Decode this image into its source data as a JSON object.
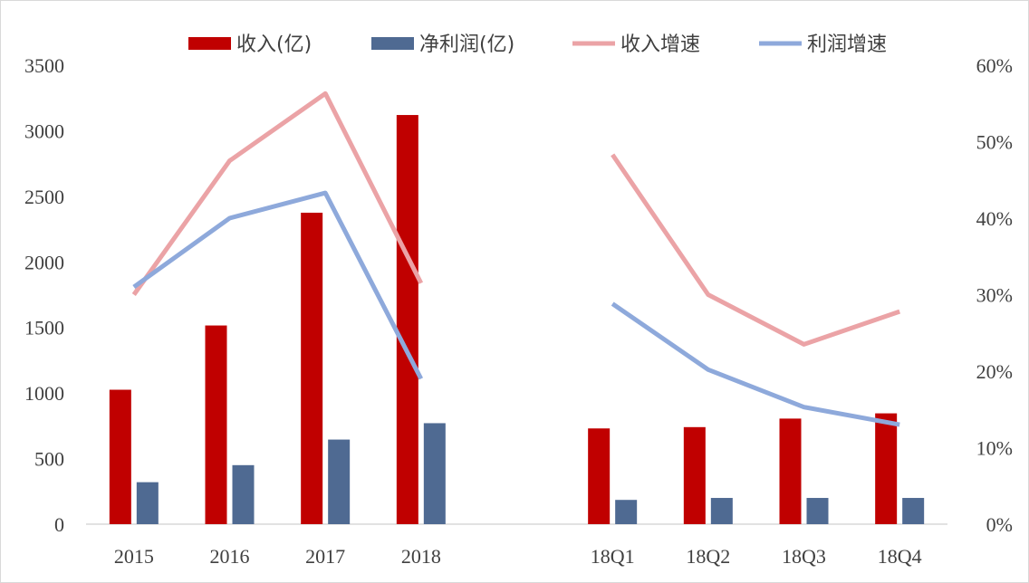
{
  "chart_data": {
    "type": "bar",
    "categories": [
      "2015",
      "2016",
      "2017",
      "2018",
      "",
      "18Q1",
      "18Q2",
      "18Q3",
      "18Q4"
    ],
    "series": [
      {
        "name": "收入(亿)",
        "kind": "bar",
        "axis": "left",
        "color": "#C00000",
        "values": [
          1025,
          1515,
          2375,
          3120,
          null,
          730,
          740,
          805,
          845
        ]
      },
      {
        "name": "净利润(亿)",
        "kind": "bar",
        "axis": "left",
        "color": "#4F6A92",
        "values": [
          320,
          450,
          645,
          770,
          null,
          185,
          200,
          200,
          200
        ]
      },
      {
        "name": "收入增速",
        "kind": "line",
        "axis": "right",
        "color": "#EBA3A6",
        "values": [
          0.3,
          0.475,
          0.563,
          0.315,
          null,
          0.483,
          0.3,
          0.235,
          0.278
        ]
      },
      {
        "name": "利润增速",
        "kind": "line",
        "axis": "right",
        "color": "#8EA9DB",
        "values": [
          0.31,
          0.4,
          0.433,
          0.19,
          null,
          0.288,
          0.202,
          0.153,
          0.13
        ]
      }
    ],
    "left_axis": {
      "min": 0,
      "max": 3500,
      "ticks": [
        0,
        500,
        1000,
        1500,
        2000,
        2500,
        3000,
        3500
      ]
    },
    "right_axis": {
      "min": 0,
      "max": 0.6,
      "ticks": [
        "0%",
        "10%",
        "20%",
        "30%",
        "40%",
        "50%",
        "60%"
      ]
    },
    "legend_position": "top",
    "grid": false
  }
}
